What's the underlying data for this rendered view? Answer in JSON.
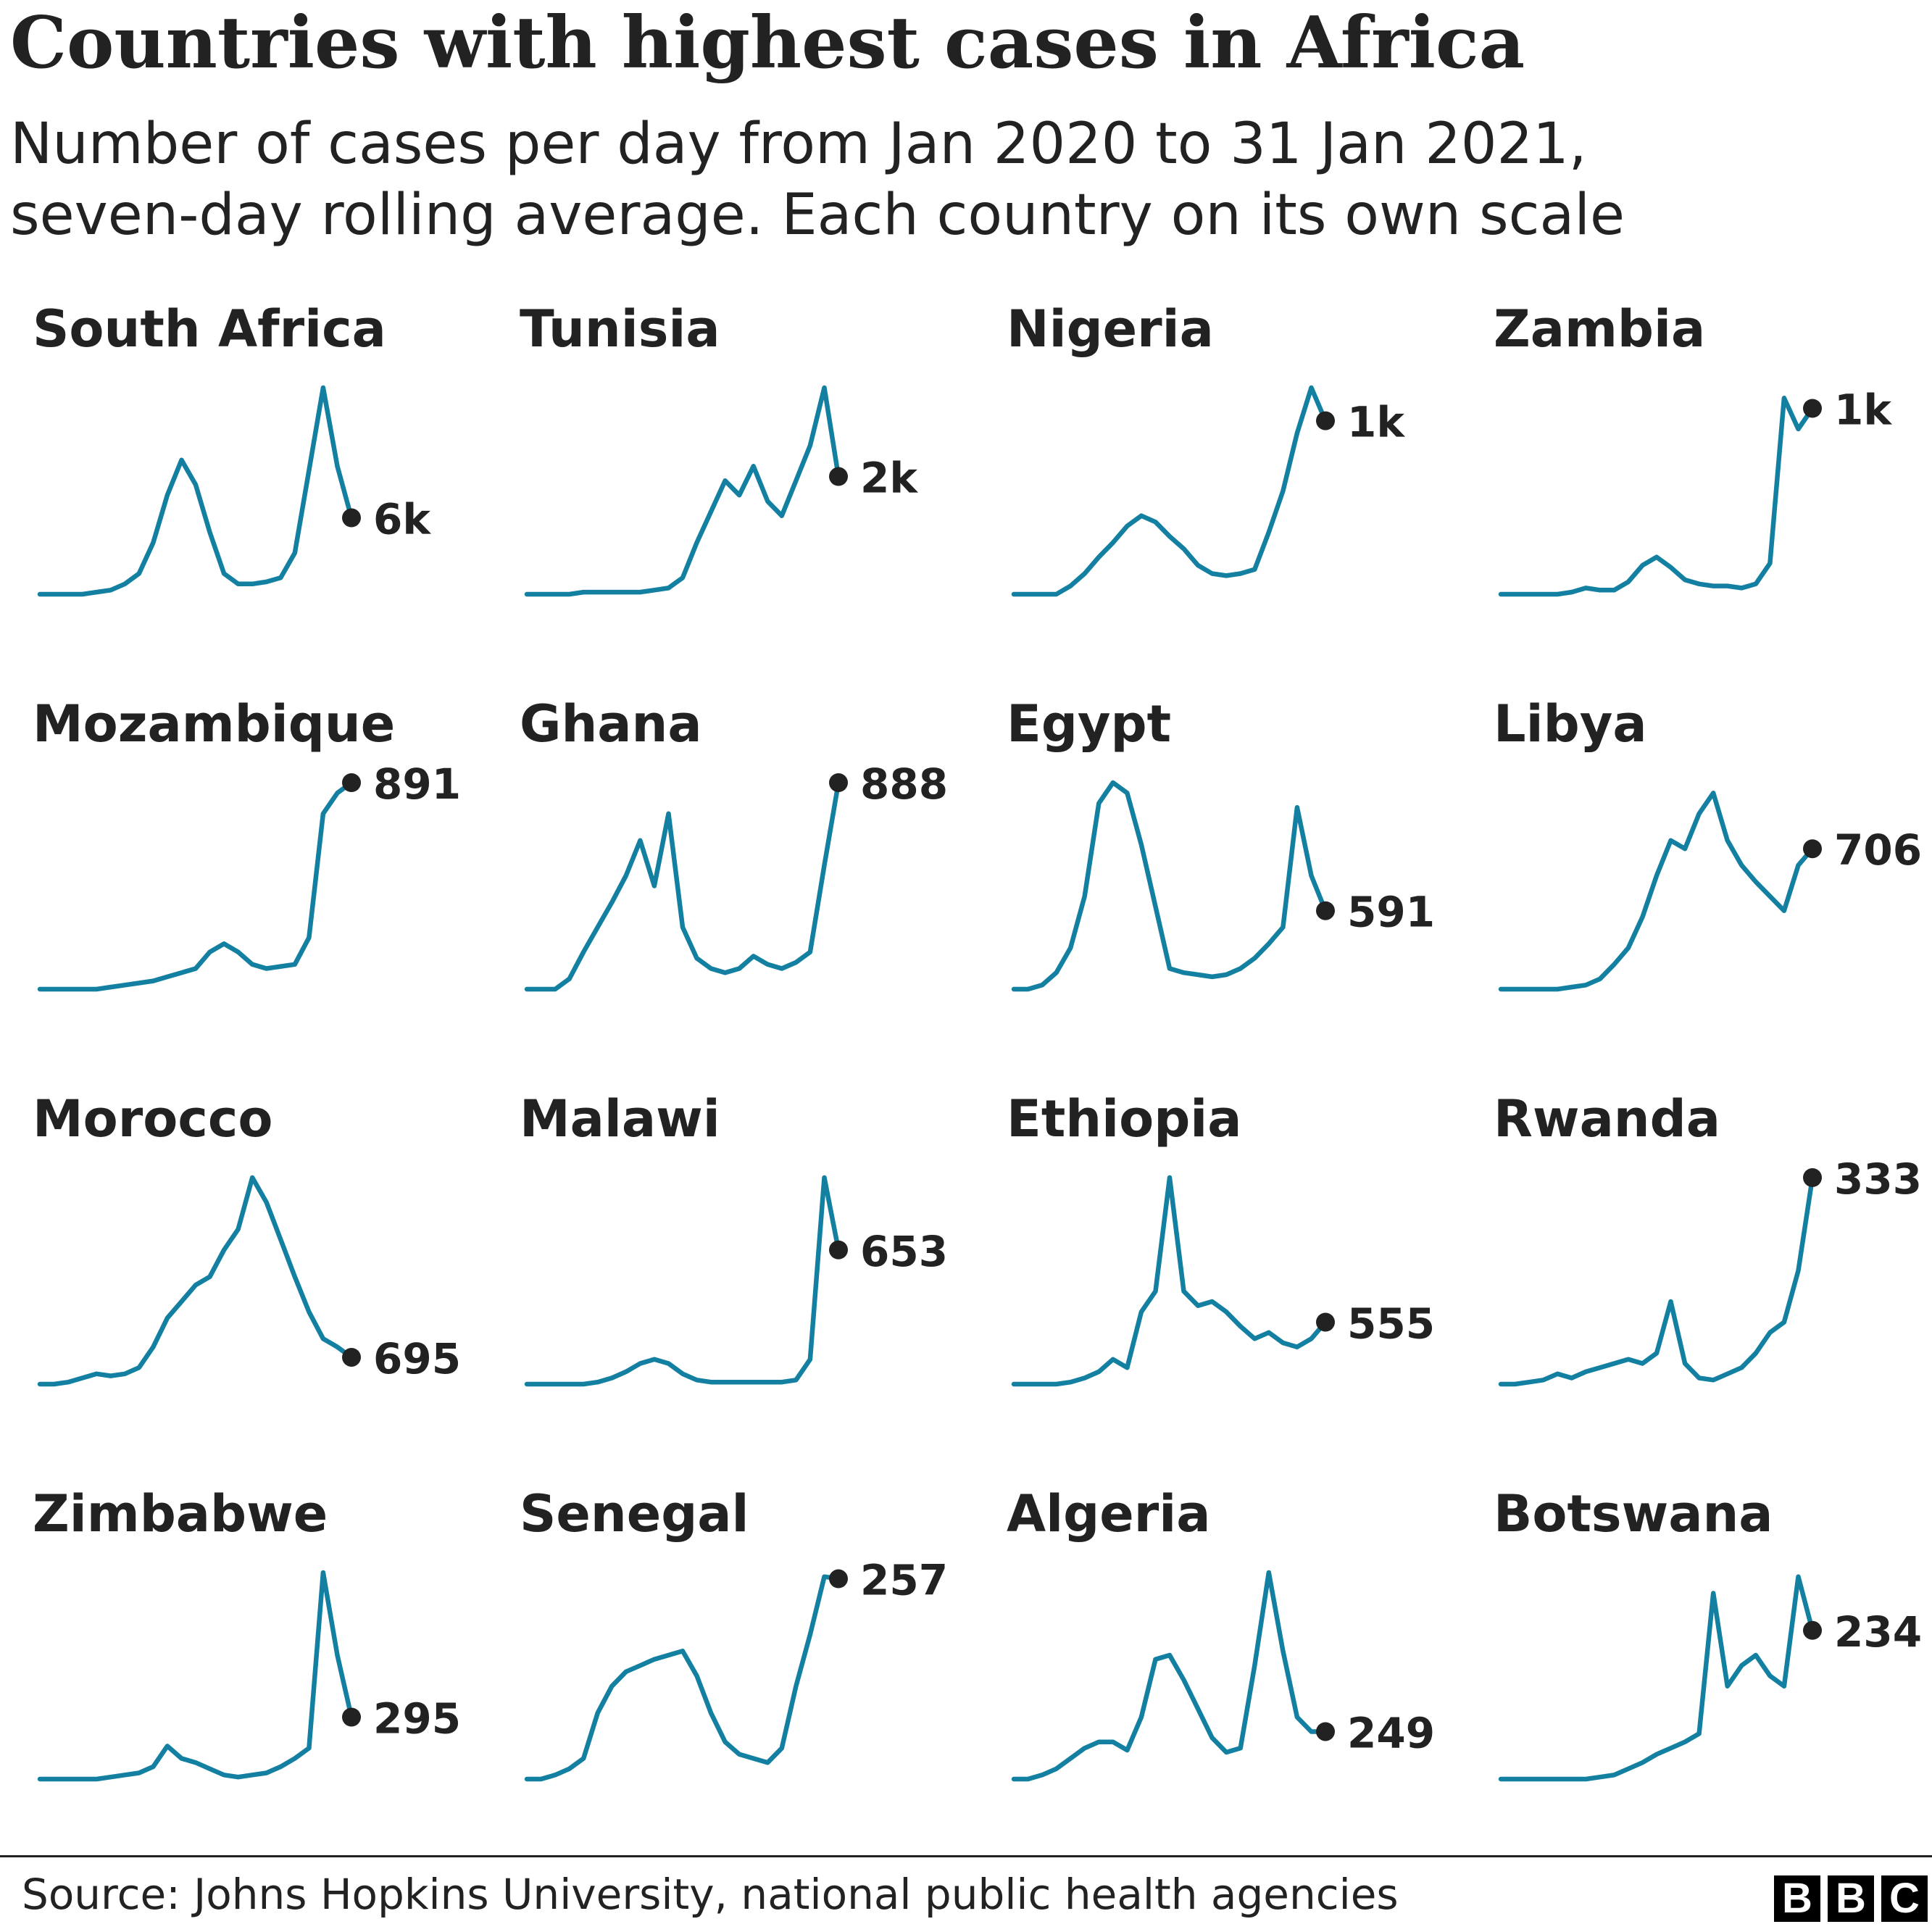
{
  "title": "Countries with highest cases in Africa",
  "subtitle": {
    "line1": "Number of cases per day from Jan 2020 to 31 Jan 2021,",
    "line2": "seven-day rolling average. Each country on its own scale"
  },
  "source": "Source: Johns Hopkins University, national public health agencies",
  "logo": [
    "B",
    "B",
    "C"
  ],
  "colors": {
    "line": "#1380A1",
    "dot": "#222222",
    "text": "#222222"
  },
  "chart_data": {
    "type": "line",
    "title": "Countries with highest cases in Africa",
    "x_range": [
      "Jan 2020",
      "31 Jan 2021"
    ],
    "y_note": "Seven-day rolling average of daily cases, each country on its own scale (values shown as a fraction of that country's peak)",
    "series": [
      {
        "name": "South Africa",
        "end_label": "6k",
        "values": [
          0,
          0,
          0,
          0,
          0.01,
          0.02,
          0.05,
          0.1,
          0.25,
          0.48,
          0.65,
          0.53,
          0.3,
          0.1,
          0.05,
          0.05,
          0.06,
          0.08,
          0.2,
          0.6,
          1.0,
          0.62,
          0.37
        ]
      },
      {
        "name": "Tunisia",
        "end_label": "2k",
        "values": [
          0,
          0,
          0,
          0,
          0.01,
          0.01,
          0.01,
          0.01,
          0.01,
          0.02,
          0.03,
          0.08,
          0.25,
          0.4,
          0.55,
          0.48,
          0.62,
          0.45,
          0.38,
          0.55,
          0.72,
          1.0,
          0.57
        ]
      },
      {
        "name": "Nigeria",
        "end_label": "1k",
        "values": [
          0,
          0,
          0,
          0,
          0.04,
          0.1,
          0.18,
          0.25,
          0.33,
          0.38,
          0.35,
          0.28,
          0.22,
          0.14,
          0.1,
          0.09,
          0.1,
          0.12,
          0.3,
          0.5,
          0.78,
          1.0,
          0.84
        ]
      },
      {
        "name": "Zambia",
        "end_label": "1k",
        "values": [
          0,
          0,
          0,
          0,
          0,
          0.01,
          0.03,
          0.02,
          0.02,
          0.06,
          0.14,
          0.18,
          0.13,
          0.07,
          0.05,
          0.04,
          0.04,
          0.03,
          0.05,
          0.15,
          0.95,
          0.8,
          0.9
        ]
      },
      {
        "name": "Mozambique",
        "end_label": "891",
        "values": [
          0,
          0,
          0,
          0,
          0,
          0.01,
          0.02,
          0.03,
          0.04,
          0.06,
          0.08,
          0.1,
          0.18,
          0.22,
          0.18,
          0.12,
          0.1,
          0.11,
          0.12,
          0.25,
          0.85,
          0.95,
          1.0
        ]
      },
      {
        "name": "Ghana",
        "end_label": "888",
        "values": [
          0,
          0,
          0,
          0.05,
          0.18,
          0.3,
          0.42,
          0.55,
          0.72,
          0.5,
          0.85,
          0.3,
          0.15,
          0.1,
          0.08,
          0.1,
          0.16,
          0.12,
          0.1,
          0.13,
          0.18,
          0.6,
          1.0
        ]
      },
      {
        "name": "Egypt",
        "end_label": "591",
        "values": [
          0,
          0,
          0.02,
          0.08,
          0.2,
          0.45,
          0.9,
          1.0,
          0.95,
          0.7,
          0.4,
          0.1,
          0.08,
          0.07,
          0.06,
          0.07,
          0.1,
          0.15,
          0.22,
          0.3,
          0.88,
          0.55,
          0.38
        ]
      },
      {
        "name": "Libya",
        "end_label": "706",
        "values": [
          0,
          0,
          0,
          0,
          0,
          0.01,
          0.02,
          0.05,
          0.12,
          0.2,
          0.35,
          0.55,
          0.72,
          0.68,
          0.85,
          0.95,
          0.72,
          0.6,
          0.52,
          0.45,
          0.38,
          0.6,
          0.68
        ]
      },
      {
        "name": "Morocco",
        "end_label": "695",
        "values": [
          0,
          0,
          0.01,
          0.03,
          0.05,
          0.04,
          0.05,
          0.08,
          0.18,
          0.32,
          0.4,
          0.48,
          0.52,
          0.65,
          0.75,
          1.0,
          0.88,
          0.7,
          0.52,
          0.35,
          0.22,
          0.18,
          0.13
        ]
      },
      {
        "name": "Malawi",
        "end_label": "653",
        "values": [
          0,
          0,
          0,
          0,
          0,
          0.01,
          0.03,
          0.06,
          0.1,
          0.12,
          0.1,
          0.05,
          0.02,
          0.01,
          0.01,
          0.01,
          0.01,
          0.01,
          0.01,
          0.02,
          0.12,
          1.0,
          0.65
        ]
      },
      {
        "name": "Ethiopia",
        "end_label": "555",
        "values": [
          0,
          0,
          0,
          0,
          0.01,
          0.03,
          0.06,
          0.12,
          0.08,
          0.35,
          0.45,
          1.0,
          0.45,
          0.38,
          0.4,
          0.35,
          0.28,
          0.22,
          0.25,
          0.2,
          0.18,
          0.22,
          0.3
        ]
      },
      {
        "name": "Rwanda",
        "end_label": "333",
        "values": [
          0,
          0,
          0.01,
          0.02,
          0.05,
          0.03,
          0.06,
          0.08,
          0.1,
          0.12,
          0.1,
          0.15,
          0.4,
          0.1,
          0.03,
          0.02,
          0.05,
          0.08,
          0.15,
          0.25,
          0.3,
          0.55,
          1.0
        ]
      },
      {
        "name": "Zimbabwe",
        "end_label": "295",
        "values": [
          0,
          0,
          0,
          0,
          0,
          0.01,
          0.02,
          0.03,
          0.06,
          0.16,
          0.1,
          0.08,
          0.05,
          0.02,
          0.01,
          0.02,
          0.03,
          0.06,
          0.1,
          0.15,
          1.0,
          0.6,
          0.3
        ]
      },
      {
        "name": "Senegal",
        "end_label": "257",
        "values": [
          0,
          0,
          0.02,
          0.05,
          0.1,
          0.32,
          0.45,
          0.52,
          0.55,
          0.58,
          0.6,
          0.62,
          0.5,
          0.32,
          0.18,
          0.12,
          0.1,
          0.08,
          0.15,
          0.45,
          0.7,
          0.98,
          0.97
        ]
      },
      {
        "name": "Algeria",
        "end_label": "249",
        "values": [
          0,
          0,
          0.02,
          0.05,
          0.1,
          0.15,
          0.18,
          0.18,
          0.14,
          0.3,
          0.58,
          0.6,
          0.48,
          0.34,
          0.2,
          0.13,
          0.15,
          0.55,
          1.0,
          0.62,
          0.3,
          0.23,
          0.23
        ]
      },
      {
        "name": "Botswana",
        "end_label": "234",
        "values": [
          0,
          0,
          0,
          0,
          0,
          0,
          0,
          0.01,
          0.02,
          0.05,
          0.08,
          0.12,
          0.15,
          0.18,
          0.22,
          0.9,
          0.45,
          0.55,
          0.6,
          0.5,
          0.45,
          0.98,
          0.72
        ]
      }
    ]
  }
}
